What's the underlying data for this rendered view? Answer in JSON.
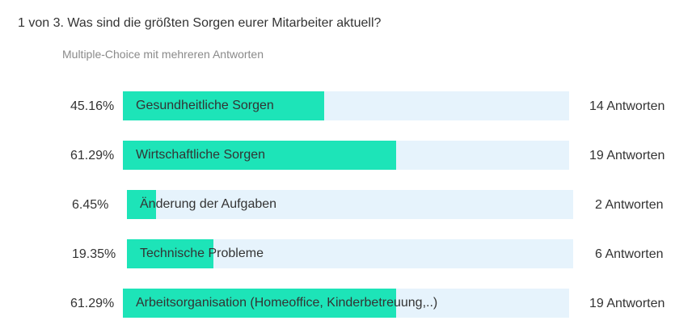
{
  "question": {
    "title": "1 von 3. Was sind die größten Sorgen eurer Mitarbeiter aktuell?",
    "type": "Multiple-Choice mit mehreren Antworten"
  },
  "results": [
    {
      "percent": "45.16%",
      "label": "Gesundheitliche Sorgen",
      "count": "14 Antworten",
      "fraction": 0.4516
    },
    {
      "percent": "61.29%",
      "label": "Wirtschaftliche Sorgen",
      "count": "19 Antworten",
      "fraction": 0.6129
    },
    {
      "percent": "6.45%",
      "label": "Änderung der Aufgaben",
      "count": "2 Antworten",
      "fraction": 0.0645
    },
    {
      "percent": "19.35%",
      "label": "Technische Probleme",
      "count": "6 Antworten",
      "fraction": 0.1935
    },
    {
      "percent": "61.29%",
      "label": "Arbeitsorganisation (Homeoffice, Kinderbetreuung,..)",
      "count": "19 Antworten",
      "fraction": 0.6129
    }
  ],
  "colors": {
    "bar_fill": "#1de4b8",
    "bar_track": "#e6f3fc"
  }
}
